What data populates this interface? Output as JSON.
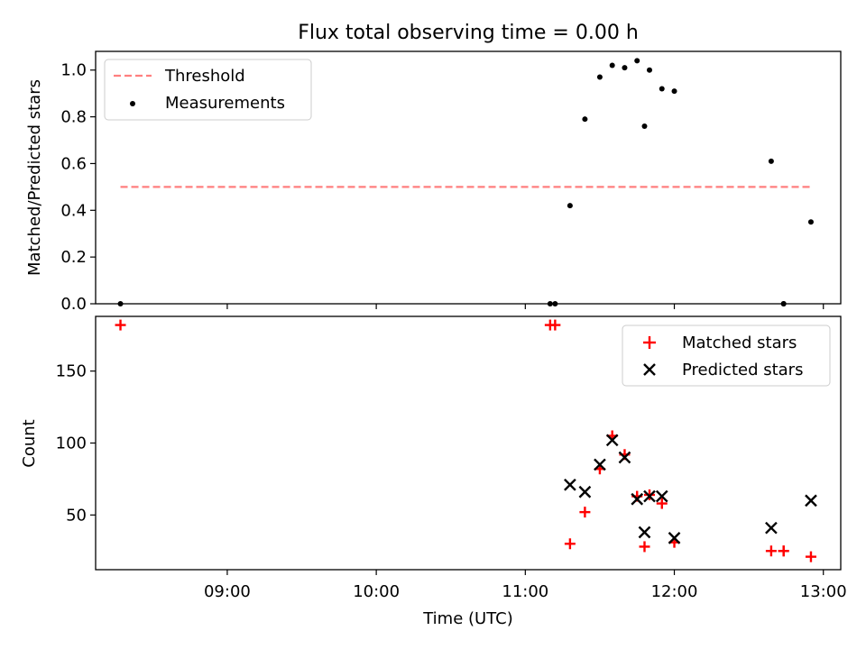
{
  "chart_data": [
    {
      "type": "scatter",
      "title": "Flux total observing time = 0.00 h",
      "xlabel": "",
      "ylabel": "Matched/Predicted stars",
      "ylim": [
        0,
        1.08
      ],
      "yticks": [
        "0.0",
        "0.2",
        "0.4",
        "0.6",
        "0.8",
        "1.0"
      ],
      "x_time_range": [
        "08:07",
        "13:07"
      ],
      "legend_position": "top-left",
      "threshold": {
        "name": "Threshold",
        "value": 0.5,
        "x_range": [
          "08:17",
          "12:55"
        ],
        "color": "#ff7f7f"
      },
      "series": [
        {
          "name": "Measurements",
          "color": "#000000",
          "x": [
            "08:17",
            "11:10",
            "11:12",
            "11:18",
            "11:24",
            "11:30",
            "11:35",
            "11:40",
            "11:45",
            "11:48",
            "11:50",
            "11:55",
            "12:00",
            "12:39",
            "12:44",
            "12:44",
            "12:55"
          ],
          "y": [
            0.0,
            0.0,
            0.0,
            0.42,
            0.79,
            0.97,
            1.02,
            1.01,
            1.04,
            0.76,
            1.0,
            0.92,
            0.91,
            0.61,
            0.0,
            0.0,
            0.35
          ]
        }
      ]
    },
    {
      "type": "scatter",
      "title": "",
      "xlabel": "Time (UTC)",
      "ylabel": "Count",
      "ylim": [
        12,
        188
      ],
      "yticks": [
        "50",
        "100",
        "150"
      ],
      "xticks": [
        "09:00",
        "10:00",
        "11:00",
        "12:00",
        "13:00"
      ],
      "x_time_range": [
        "08:07",
        "13:07"
      ],
      "legend_position": "top-right",
      "series": [
        {
          "name": "Matched stars",
          "marker": "plus",
          "color": "#ff0000",
          "x": [
            "08:17",
            "11:10",
            "11:12",
            "11:18",
            "11:24",
            "11:30",
            "11:35",
            "11:40",
            "11:45",
            "11:48",
            "11:50",
            "11:55",
            "12:00",
            "12:39",
            "12:44",
            "12:44",
            "12:55"
          ],
          "y": [
            182,
            182,
            182,
            30,
            52,
            82,
            105,
            92,
            63,
            28,
            64,
            58,
            31,
            25,
            25,
            25,
            21
          ]
        },
        {
          "name": "Predicted stars",
          "marker": "x",
          "color": "#000000",
          "x": [
            "11:18",
            "11:24",
            "11:30",
            "11:35",
            "11:40",
            "11:45",
            "11:48",
            "11:50",
            "11:55",
            "12:00",
            "12:39",
            "12:55"
          ],
          "y": [
            71,
            66,
            85,
            102,
            90,
            61,
            38,
            63,
            63,
            34,
            41,
            60
          ]
        }
      ]
    }
  ]
}
